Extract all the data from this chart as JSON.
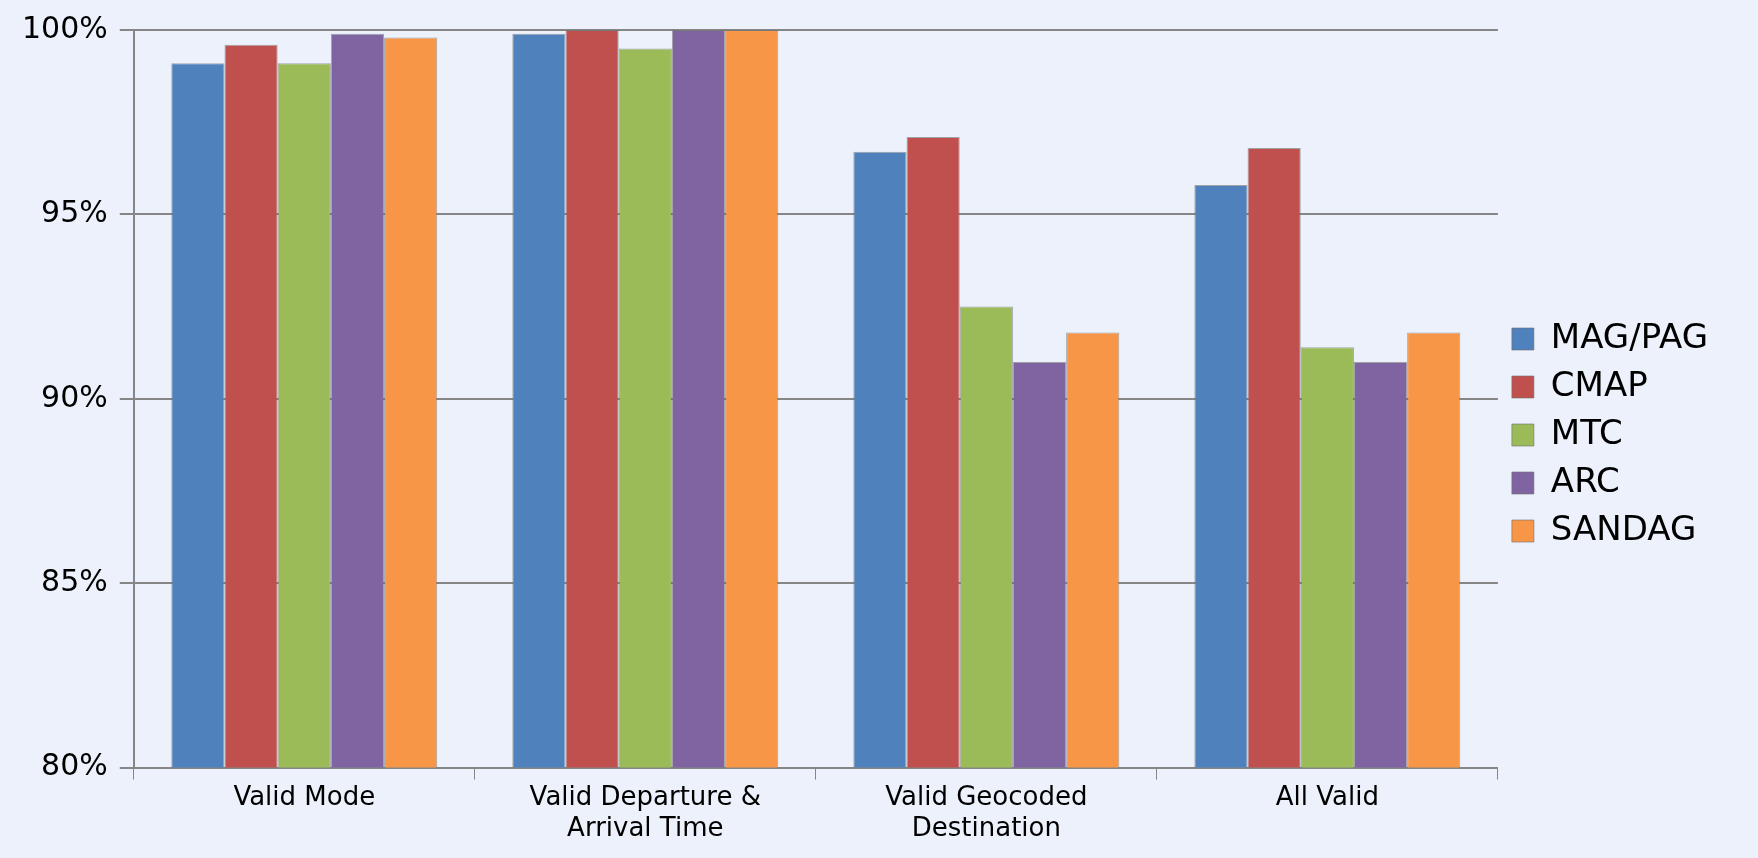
{
  "chart_data": {
    "type": "bar",
    "categories": [
      "Valid Mode",
      "Valid Departure & Arrival Time",
      "Valid Geocoded Destination",
      "All Valid"
    ],
    "series": [
      {
        "name": "MAG/PAG",
        "color": "#4f81bd",
        "values": [
          99.1,
          99.9,
          96.7,
          95.8
        ]
      },
      {
        "name": "CMAP",
        "color": "#c0504d",
        "values": [
          99.6,
          100,
          97.1,
          96.8
        ]
      },
      {
        "name": "MTC",
        "color": "#9bbb59",
        "values": [
          99.1,
          99.5,
          92.5,
          91.4
        ]
      },
      {
        "name": "ARC",
        "color": "#8064a2",
        "values": [
          99.9,
          100,
          91.0,
          91.0
        ]
      },
      {
        "name": "SANDAG",
        "color": "#f79646",
        "values": [
          99.8,
          100,
          91.8,
          91.8
        ]
      }
    ],
    "ylim": [
      80,
      100
    ],
    "yticks": [
      {
        "value": 80,
        "label": "80%"
      },
      {
        "value": 85,
        "label": "85%"
      },
      {
        "value": 90,
        "label": "90%"
      },
      {
        "value": 95,
        "label": "95%"
      },
      {
        "value": 100,
        "label": "100%"
      }
    ],
    "grid": "y",
    "legend": "right"
  }
}
